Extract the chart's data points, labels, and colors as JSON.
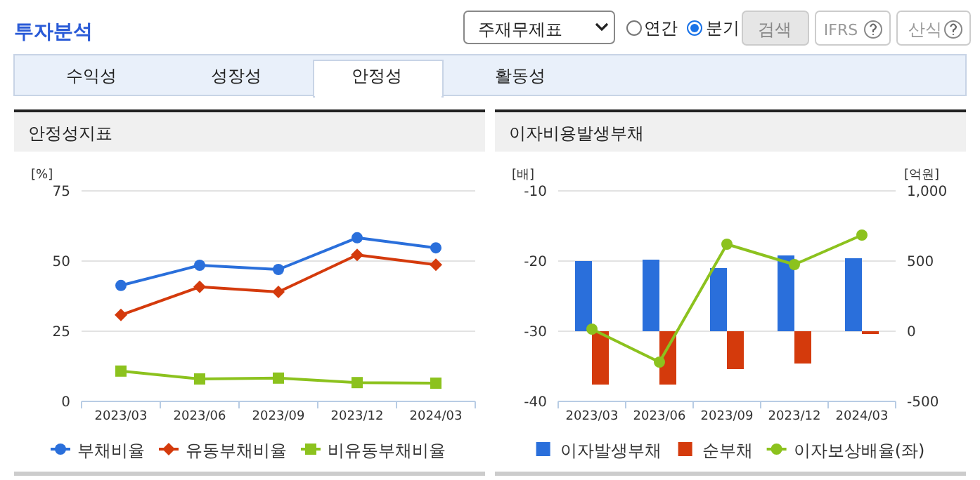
{
  "chart_data": [
    {
      "type": "other",
      "title": "투자분석",
      "annotations": [
        "주재무제표",
        "연간",
        "분기",
        "검색",
        "IFRS",
        "산식",
        "수익성",
        "성장성",
        "안정성",
        "활동성"
      ]
    },
    {
      "type": "line",
      "title": "안정성지표",
      "ylabel": "[%]",
      "categories": [
        "2023/03",
        "2023/06",
        "2023/09",
        "2023/12",
        "2024/03"
      ],
      "ylim": [
        0,
        75
      ],
      "yticks": [
        0,
        25,
        50,
        75
      ],
      "grid": "y",
      "legend": "bottom",
      "series": [
        {
          "name": "부채비율",
          "color": "#2a6fdb",
          "marker": "circle",
          "values": [
            41.3,
            48.5,
            47.0,
            58.3,
            54.7
          ]
        },
        {
          "name": "유동부채비율",
          "color": "#d43a0c",
          "marker": "diamond",
          "values": [
            30.8,
            40.8,
            39.0,
            52.2,
            48.7
          ]
        },
        {
          "name": "비유동부채비율",
          "color": "#8cc21e",
          "marker": "square",
          "values": [
            10.8,
            8.0,
            8.3,
            6.7,
            6.5
          ]
        }
      ]
    },
    {
      "type": "bar",
      "title": "이자비용발생부채",
      "ylabel": "[배]",
      "y2label": "[억원]",
      "categories": [
        "2023/03",
        "2023/06",
        "2023/09",
        "2023/12",
        "2024/03"
      ],
      "ylim": [
        -40,
        -10
      ],
      "yticks": [
        -40,
        -30,
        -20,
        -10
      ],
      "y2lim": [
        -500,
        1000
      ],
      "y2ticks": [
        -500,
        0,
        500,
        {
          "value": 1000,
          "label": "1,000"
        }
      ],
      "grid": "y",
      "legend": "bottom",
      "series": [
        {
          "name": "이자발생부채",
          "color": "#2a6fdb",
          "axis": "y2",
          "values": [
            500,
            510,
            450,
            540,
            520
          ]
        },
        {
          "name": "순부채",
          "color": "#d43a0c",
          "axis": "y2",
          "values": [
            -380,
            -380,
            -270,
            -230,
            -20
          ]
        },
        {
          "name": "이자보상배율(좌)",
          "color": "#8cc21e",
          "type": "line",
          "marker": "circle",
          "values": [
            -29.7,
            -34.4,
            -17.6,
            -20.5,
            -16.3
          ]
        }
      ]
    }
  ]
}
